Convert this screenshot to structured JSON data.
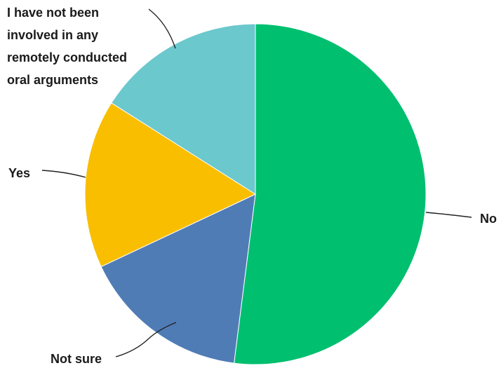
{
  "chart_data": {
    "type": "pie",
    "title": "",
    "categories": [
      "No",
      "Not sure",
      "Yes",
      "I have not been involved in any remotely conducted oral arguments"
    ],
    "values": [
      52,
      16,
      16,
      16
    ],
    "label_lines": [
      [
        "No"
      ],
      [
        "Not sure"
      ],
      [
        "Yes"
      ],
      [
        "I have not been",
        "involved in any",
        "remotely conducted",
        "oral arguments"
      ]
    ],
    "colors": [
      "#00bf6f",
      "#507cb6",
      "#f9be00",
      "#6bc8cd"
    ],
    "start": "12 o'clock",
    "direction": "clockwise",
    "legend": "none"
  }
}
